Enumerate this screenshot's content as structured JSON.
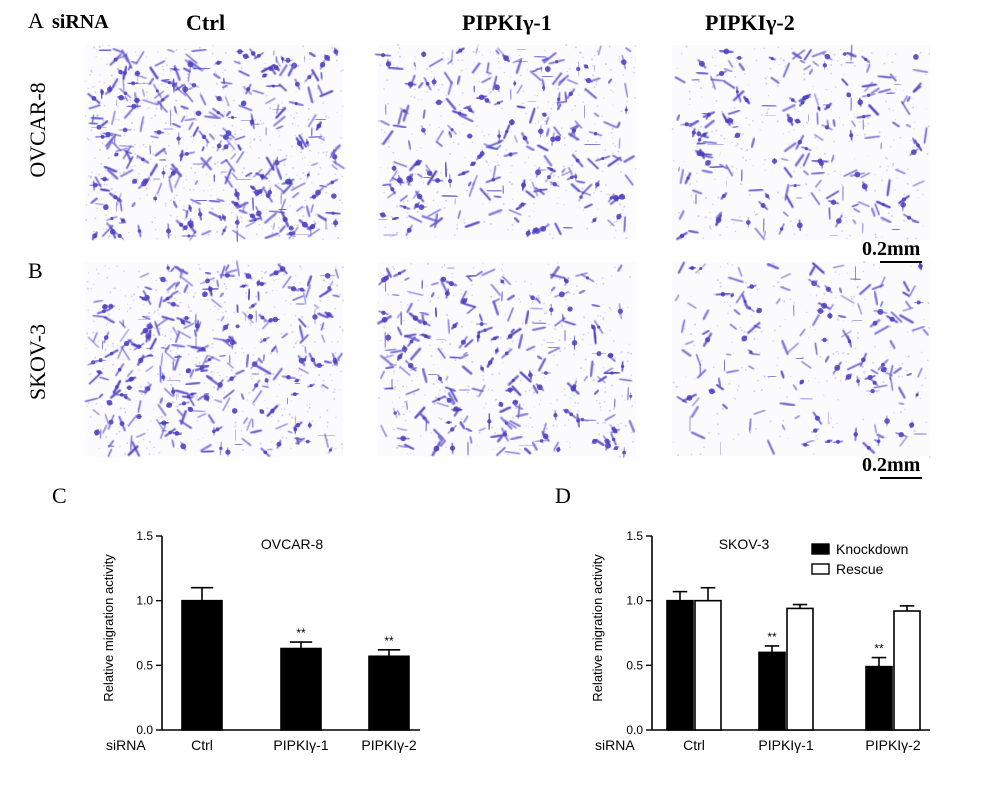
{
  "micrographs": {
    "panel_a_letter": "A",
    "panel_b_letter": "B",
    "sirna_label": "siRNA",
    "columns": [
      "Ctrl",
      "PIPKIγ-1",
      "PIPKIγ-2"
    ],
    "rows": [
      "OVCAR-8",
      "SKOV-3"
    ],
    "scale_bar_label": "0.2mm",
    "stain_color": "#4b3fc0"
  },
  "chart_data": [
    {
      "type": "bar",
      "panel_letter": "C",
      "title": "OVCAR-8",
      "xlabel": "siRNA",
      "ylabel": "Relative migration activity",
      "categories": [
        "Ctrl",
        "PIPKIγ-1",
        "PIPKIγ-2"
      ],
      "series": [
        {
          "values": [
            1.0,
            0.63,
            0.57
          ],
          "errors": [
            0.1,
            0.05,
            0.05
          ],
          "fill": "#000000"
        }
      ],
      "significance": [
        "",
        "**",
        "**"
      ],
      "ylim": [
        0,
        1.5
      ],
      "yticks": [
        "0.0",
        "0.5",
        "1.0",
        "1.5"
      ],
      "grid": false
    },
    {
      "type": "bar",
      "panel_letter": "D",
      "title": "SKOV-3",
      "xlabel": "siRNA",
      "ylabel": "Relative migration activity",
      "categories": [
        "Ctrl",
        "PIPKIγ-1",
        "PIPKIγ-2"
      ],
      "series": [
        {
          "name": "Knockdown",
          "values": [
            1.0,
            0.6,
            0.49
          ],
          "errors": [
            0.07,
            0.05,
            0.07
          ],
          "fill": "#000000"
        },
        {
          "name": "Rescue",
          "values": [
            1.0,
            0.94,
            0.92
          ],
          "errors": [
            0.1,
            0.03,
            0.04
          ],
          "fill": "#ffffff"
        }
      ],
      "significance": [
        "",
        "**",
        "**"
      ],
      "ylim": [
        0,
        1.5
      ],
      "yticks": [
        "0.0",
        "0.5",
        "1.0",
        "1.5"
      ],
      "legend": "top-right",
      "grid": false
    }
  ]
}
